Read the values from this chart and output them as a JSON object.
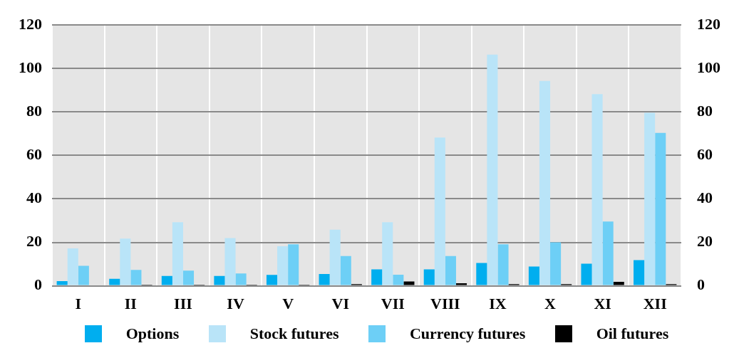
{
  "chart_data": {
    "type": "bar",
    "categories": [
      "I",
      "II",
      "III",
      "IV",
      "V",
      "VI",
      "VII",
      "VIII",
      "IX",
      "X",
      "XI",
      "XII"
    ],
    "series": [
      {
        "name": "Options",
        "color": "#00aeef",
        "values": [
          2.2,
          3.2,
          4.5,
          4.5,
          5,
          5.4,
          7.6,
          7.6,
          10.5,
          8.9,
          10.2,
          11.8
        ]
      },
      {
        "name": "Stock futures",
        "color": "#b9e4f8",
        "values": [
          17.2,
          21.7,
          29.3,
          22,
          18.2,
          25.8,
          29.3,
          68.2,
          106.4,
          94.3,
          88.2,
          79.6
        ]
      },
      {
        "name": "Currency futures",
        "color": "#6dcff6",
        "values": [
          9.2,
          7.3,
          7,
          5.7,
          19.1,
          13.7,
          5.1,
          13.7,
          19.1,
          20,
          29.6,
          70.4
        ]
      },
      {
        "name": "Oil futures",
        "color": "#000000",
        "values": [
          0,
          0.5,
          0.5,
          0.5,
          0.5,
          0.8,
          2,
          1.2,
          0.8,
          0.8,
          1.8,
          0.8
        ]
      }
    ],
    "ylim": [
      0,
      120
    ],
    "yticks": [
      0,
      20,
      40,
      60,
      80,
      100,
      120
    ],
    "y2lim": [
      0,
      120
    ],
    "y2ticks": [
      0,
      20,
      40,
      60,
      80,
      100,
      120
    ],
    "grid": true,
    "legend": "bottom"
  }
}
